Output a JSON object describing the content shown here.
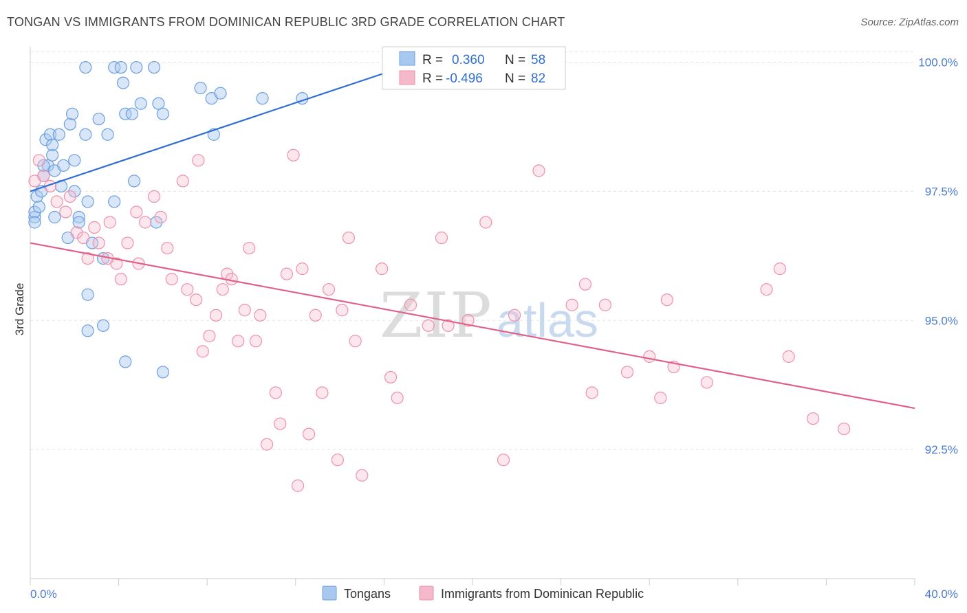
{
  "header": {
    "title": "TONGAN VS IMMIGRANTS FROM DOMINICAN REPUBLIC 3RD GRADE CORRELATION CHART",
    "source": "Source: ZipAtlas.com"
  },
  "watermark": {
    "zip": "ZIP",
    "atlas": "atlas"
  },
  "legend_top": {
    "rows": [
      {
        "r_label": "R =",
        "r_value": "0.360",
        "n_label": "N =",
        "n_value": "58",
        "color": "#a9c8f0"
      },
      {
        "r_label": "R =",
        "r_value": "-0.496",
        "n_label": "N =",
        "n_value": "82",
        "color": "#f5b9cc"
      }
    ]
  },
  "legend_bottom": {
    "items": [
      {
        "label": "Tongans",
        "color": "#a9c8f0"
      },
      {
        "label": "Immigrants from Dominican Republic",
        "color": "#f5b9cc"
      }
    ]
  },
  "chart_data": {
    "type": "scatter",
    "title": "TONGAN VS IMMIGRANTS FROM DOMINICAN REPUBLIC 3RD GRADE CORRELATION CHART",
    "xlabel": "",
    "ylabel": "3rd Grade",
    "xlim": [
      0,
      40
    ],
    "ylim": [
      90.0,
      100.3
    ],
    "x_tick_labels": [
      "0.0%",
      "40.0%"
    ],
    "y_ticks": [
      92.5,
      95.0,
      97.5,
      100.0
    ],
    "y_tick_labels": [
      "92.5%",
      "95.0%",
      "97.5%",
      "100.0%"
    ],
    "grid": true,
    "legend_position": "top-center",
    "colors": {
      "tongans": "#6b9fe0",
      "dominican": "#ef8fae",
      "tongans_line": "#2f6fd1",
      "dominican_line": "#e0608a"
    },
    "series": [
      {
        "name": "Tongans",
        "trend": {
          "x": [
            0.0,
            17.5
          ],
          "y": [
            97.5,
            100.0
          ]
        },
        "points": [
          [
            0.2,
            97.0
          ],
          [
            0.3,
            97.4
          ],
          [
            0.2,
            97.1
          ],
          [
            0.4,
            97.2
          ],
          [
            0.5,
            97.5
          ],
          [
            0.6,
            97.8
          ],
          [
            0.8,
            98.0
          ],
          [
            0.7,
            98.5
          ],
          [
            0.9,
            98.6
          ],
          [
            1.0,
            98.2
          ],
          [
            1.0,
            98.4
          ],
          [
            1.1,
            97.9
          ],
          [
            1.3,
            98.6
          ],
          [
            1.4,
            97.6
          ],
          [
            1.5,
            98.0
          ],
          [
            1.8,
            98.8
          ],
          [
            1.9,
            99.0
          ],
          [
            2.0,
            97.5
          ],
          [
            2.2,
            97.0
          ],
          [
            2.5,
            98.6
          ],
          [
            2.6,
            97.3
          ],
          [
            2.8,
            96.5
          ],
          [
            3.1,
            98.9
          ],
          [
            3.3,
            96.2
          ],
          [
            3.5,
            98.6
          ],
          [
            3.8,
            99.9
          ],
          [
            3.8,
            97.3
          ],
          [
            4.1,
            99.9
          ],
          [
            4.2,
            99.6
          ],
          [
            4.3,
            99.0
          ],
          [
            4.6,
            99.0
          ],
          [
            4.7,
            97.7
          ],
          [
            4.8,
            99.9
          ],
          [
            5.0,
            99.2
          ],
          [
            5.6,
            99.9
          ],
          [
            5.8,
            99.2
          ],
          [
            6.0,
            99.0
          ],
          [
            5.7,
            96.9
          ],
          [
            7.7,
            99.5
          ],
          [
            8.2,
            99.3
          ],
          [
            8.3,
            98.6
          ],
          [
            8.6,
            99.4
          ],
          [
            10.5,
            99.3
          ],
          [
            12.3,
            99.3
          ],
          [
            1.7,
            96.6
          ],
          [
            2.2,
            96.9
          ],
          [
            2.6,
            95.5
          ],
          [
            2.6,
            94.8
          ],
          [
            3.3,
            94.9
          ],
          [
            4.3,
            94.2
          ],
          [
            6.0,
            94.0
          ],
          [
            17.2,
            99.8
          ],
          [
            17.0,
            99.8
          ],
          [
            0.2,
            96.9
          ],
          [
            0.6,
            98.0
          ],
          [
            2.0,
            98.1
          ],
          [
            1.1,
            97.0
          ],
          [
            2.5,
            99.9
          ]
        ]
      },
      {
        "name": "Immigrants from Dominican Republic",
        "trend": {
          "x": [
            0.0,
            40.0
          ],
          "y": [
            96.5,
            93.3
          ]
        },
        "points": [
          [
            0.2,
            97.7
          ],
          [
            0.4,
            98.1
          ],
          [
            0.6,
            97.8
          ],
          [
            0.9,
            97.6
          ],
          [
            1.2,
            97.3
          ],
          [
            1.6,
            97.1
          ],
          [
            1.8,
            97.4
          ],
          [
            2.1,
            96.7
          ],
          [
            2.4,
            96.6
          ],
          [
            2.6,
            96.2
          ],
          [
            2.9,
            96.8
          ],
          [
            3.1,
            96.5
          ],
          [
            3.5,
            96.2
          ],
          [
            3.6,
            96.9
          ],
          [
            3.9,
            96.1
          ],
          [
            4.1,
            95.8
          ],
          [
            4.4,
            96.5
          ],
          [
            4.8,
            97.1
          ],
          [
            4.9,
            96.1
          ],
          [
            5.2,
            96.9
          ],
          [
            5.6,
            97.4
          ],
          [
            5.9,
            97.0
          ],
          [
            6.2,
            96.4
          ],
          [
            6.4,
            95.8
          ],
          [
            6.9,
            97.7
          ],
          [
            7.1,
            95.6
          ],
          [
            7.5,
            95.4
          ],
          [
            7.6,
            98.1
          ],
          [
            7.8,
            94.4
          ],
          [
            8.1,
            94.7
          ],
          [
            8.4,
            95.1
          ],
          [
            8.7,
            95.6
          ],
          [
            8.9,
            95.9
          ],
          [
            9.1,
            95.8
          ],
          [
            9.4,
            94.6
          ],
          [
            9.7,
            95.2
          ],
          [
            9.9,
            96.4
          ],
          [
            10.2,
            94.6
          ],
          [
            10.4,
            95.1
          ],
          [
            10.7,
            92.6
          ],
          [
            11.1,
            93.6
          ],
          [
            11.3,
            93.0
          ],
          [
            11.6,
            95.9
          ],
          [
            11.9,
            98.2
          ],
          [
            12.1,
            91.8
          ],
          [
            12.3,
            96.0
          ],
          [
            12.6,
            92.8
          ],
          [
            12.9,
            95.1
          ],
          [
            13.2,
            93.6
          ],
          [
            13.5,
            95.6
          ],
          [
            13.9,
            92.3
          ],
          [
            14.1,
            95.2
          ],
          [
            14.4,
            96.6
          ],
          [
            14.7,
            94.6
          ],
          [
            15.0,
            92.0
          ],
          [
            15.9,
            96.0
          ],
          [
            16.3,
            93.9
          ],
          [
            16.6,
            93.5
          ],
          [
            17.2,
            95.3
          ],
          [
            18.0,
            94.9
          ],
          [
            18.6,
            96.6
          ],
          [
            18.9,
            94.9
          ],
          [
            19.8,
            95.0
          ],
          [
            20.6,
            96.9
          ],
          [
            21.4,
            92.3
          ],
          [
            21.9,
            95.1
          ],
          [
            23.0,
            97.9
          ],
          [
            24.5,
            95.3
          ],
          [
            25.1,
            95.7
          ],
          [
            25.4,
            93.6
          ],
          [
            26.0,
            95.3
          ],
          [
            27.0,
            94.0
          ],
          [
            28.0,
            94.3
          ],
          [
            28.5,
            93.5
          ],
          [
            28.8,
            95.4
          ],
          [
            29.1,
            94.1
          ],
          [
            30.6,
            93.8
          ],
          [
            33.3,
            95.6
          ],
          [
            33.9,
            96.0
          ],
          [
            34.3,
            94.3
          ],
          [
            35.4,
            93.1
          ],
          [
            36.8,
            92.9
          ]
        ]
      }
    ]
  }
}
